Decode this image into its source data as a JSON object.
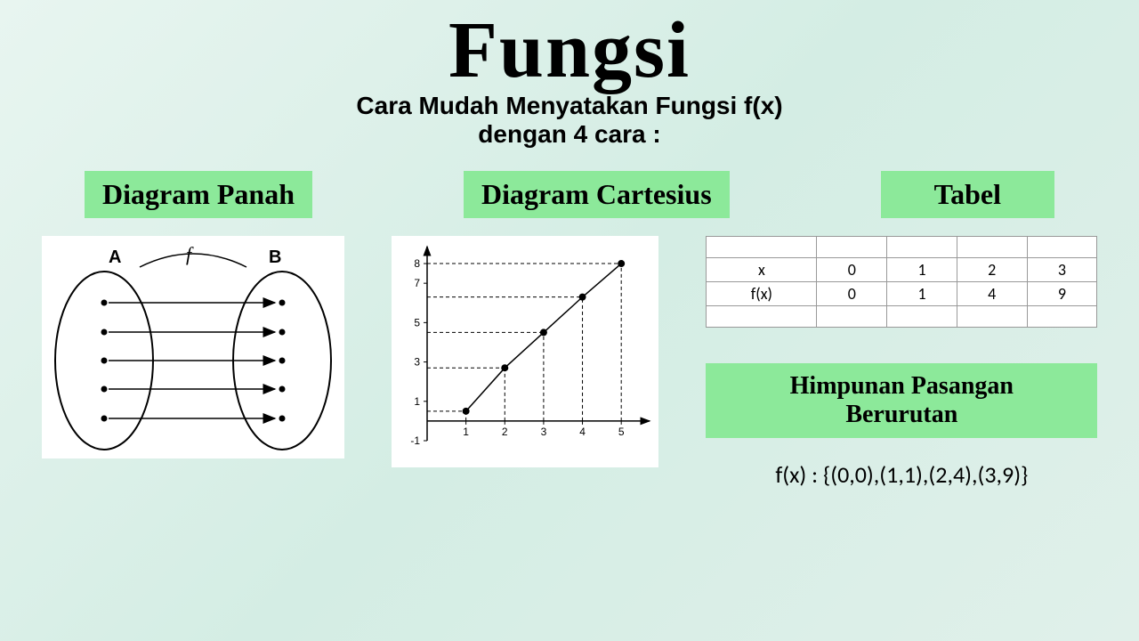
{
  "title": "Fungsi",
  "subtitle_line1": "Cara Mudah Menyatakan Fungsi f(x)",
  "subtitle_line2": "dengan 4 cara :",
  "labels": {
    "arrow": "Diagram Panah",
    "cartesius": "Diagram Cartesius",
    "tabel": "Tabel",
    "himpunan_line1": "Himpunan Pasangan",
    "himpunan_line2": "Berurutan"
  },
  "arrow_diagram": {
    "setA_label": "A",
    "setB_label": "B",
    "f_label": "f",
    "n_arrows": 5,
    "ellipse_stroke": "#000000",
    "arrow_stroke": "#000000",
    "background": "#ffffff"
  },
  "cartesius": {
    "type": "scatter-line",
    "points": [
      [
        1,
        0.5
      ],
      [
        2,
        2.7
      ],
      [
        3,
        4.5
      ],
      [
        4,
        6.3
      ],
      [
        5,
        8
      ]
    ],
    "xlim": [
      0,
      5.5
    ],
    "ylim": [
      -1,
      8.5
    ],
    "xticks": [
      1,
      2,
      3,
      4,
      5
    ],
    "yticks": [
      -1,
      1,
      3,
      5,
      7,
      8
    ],
    "point_color": "#000000",
    "line_color": "#000000",
    "dash_color": "#000000",
    "background": "#ffffff",
    "marker_radius": 4,
    "line_width": 1.5,
    "axis_fontsize": 12
  },
  "table": {
    "columns": [
      "x",
      "0",
      "1",
      "2",
      "3"
    ],
    "rows": [
      [
        "f(x)",
        "0",
        "1",
        "4",
        "9"
      ]
    ],
    "border_color": "#999999",
    "background": "#ffffff",
    "fontsize": 18
  },
  "set_notation": "f(x) : {(0,0),(1,1),(2,4),(3,9)}",
  "colors": {
    "label_bg": "#8ce99a",
    "page_bg_start": "#e8f5f0",
    "page_bg_end": "#e0f0ea",
    "text": "#000000"
  },
  "typography": {
    "title_fontsize": 90,
    "subtitle_fontsize": 28,
    "label_fontsize": 32,
    "set_fontsize": 26
  }
}
